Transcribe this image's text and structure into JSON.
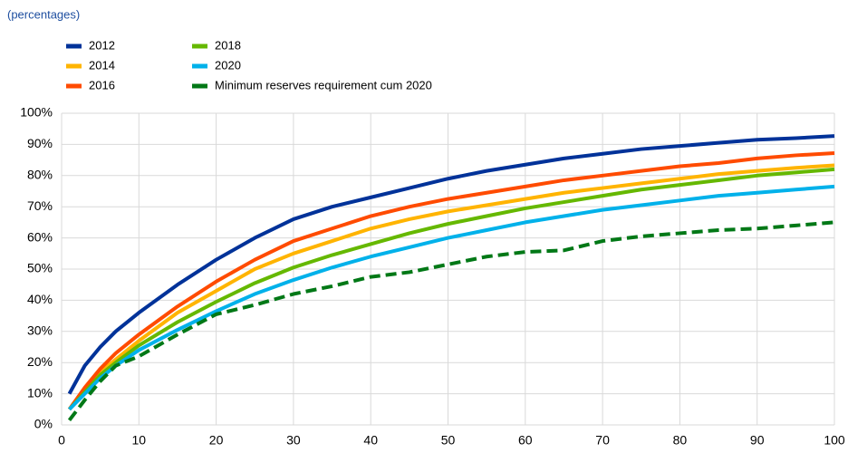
{
  "chart_data": {
    "type": "line",
    "subtitle": "(percentages)",
    "x": [
      1,
      3,
      5,
      7,
      10,
      15,
      20,
      25,
      30,
      35,
      40,
      45,
      50,
      55,
      60,
      65,
      70,
      75,
      80,
      85,
      90,
      95,
      100
    ],
    "series": [
      {
        "name": "2012",
        "color": "#003299",
        "style": "solid",
        "values": [
          10,
          19,
          25,
          30,
          36,
          45,
          53,
          60,
          66,
          70,
          73,
          76,
          79,
          81.5,
          83.5,
          85.5,
          87,
          88.5,
          89.5,
          90.5,
          91.5,
          92,
          92.7
        ]
      },
      {
        "name": "2014",
        "color": "#ffb400",
        "style": "solid",
        "values": [
          5,
          11,
          17,
          21,
          27,
          36,
          43,
          50,
          55,
          59,
          63,
          66,
          68.5,
          70.5,
          72.5,
          74.5,
          76,
          77.5,
          79,
          80.5,
          81.5,
          82.5,
          83.3
        ]
      },
      {
        "name": "2016",
        "color": "#ff4b00",
        "style": "solid",
        "values": [
          5,
          12,
          18,
          23,
          29,
          38,
          46,
          53,
          59,
          63,
          67,
          70,
          72.5,
          74.5,
          76.5,
          78.5,
          80,
          81.5,
          83,
          84,
          85.5,
          86.5,
          87.2
        ]
      },
      {
        "name": "2018",
        "color": "#65b800",
        "style": "solid",
        "values": [
          5,
          10.5,
          16,
          20,
          25.5,
          33,
          39.5,
          45.5,
          50.5,
          54.5,
          58,
          61.5,
          64.5,
          67,
          69.5,
          71.5,
          73.5,
          75.5,
          77,
          78.5,
          80,
          81,
          82
        ]
      },
      {
        "name": "2020",
        "color": "#00b1ea",
        "style": "solid",
        "values": [
          5,
          10,
          15,
          19,
          24,
          30.5,
          36.5,
          42,
          46.5,
          50.5,
          54,
          57,
          60,
          62.5,
          65,
          67,
          69,
          70.5,
          72,
          73.5,
          74.5,
          75.5,
          76.5
        ]
      },
      {
        "name": "Minimum reserves requirement cum 2020",
        "color": "#007816",
        "style": "dashed",
        "values": [
          1.5,
          8,
          14,
          19,
          22,
          29,
          35.5,
          38.5,
          42,
          44.5,
          47.5,
          49,
          51.5,
          54,
          55.5,
          56,
          59,
          60.5,
          61.5,
          62.5,
          63,
          64,
          65
        ]
      }
    ],
    "xlim": [
      0,
      100
    ],
    "xticks": [
      0,
      10,
      20,
      30,
      40,
      50,
      60,
      70,
      80,
      90,
      100
    ],
    "ylim": [
      0,
      100
    ],
    "yticks": [
      {
        "value": 0,
        "label": "0%"
      },
      {
        "value": 10,
        "label": "10%"
      },
      {
        "value": 20,
        "label": "20%"
      },
      {
        "value": 30,
        "label": "30%"
      },
      {
        "value": 40,
        "label": "40%"
      },
      {
        "value": 50,
        "label": "50%"
      },
      {
        "value": 60,
        "label": "60%"
      },
      {
        "value": 70,
        "label": "70%"
      },
      {
        "value": 80,
        "label": "80%"
      },
      {
        "value": 90,
        "label": "90%"
      },
      {
        "value": 100,
        "label": "100%"
      }
    ],
    "grid": true
  }
}
